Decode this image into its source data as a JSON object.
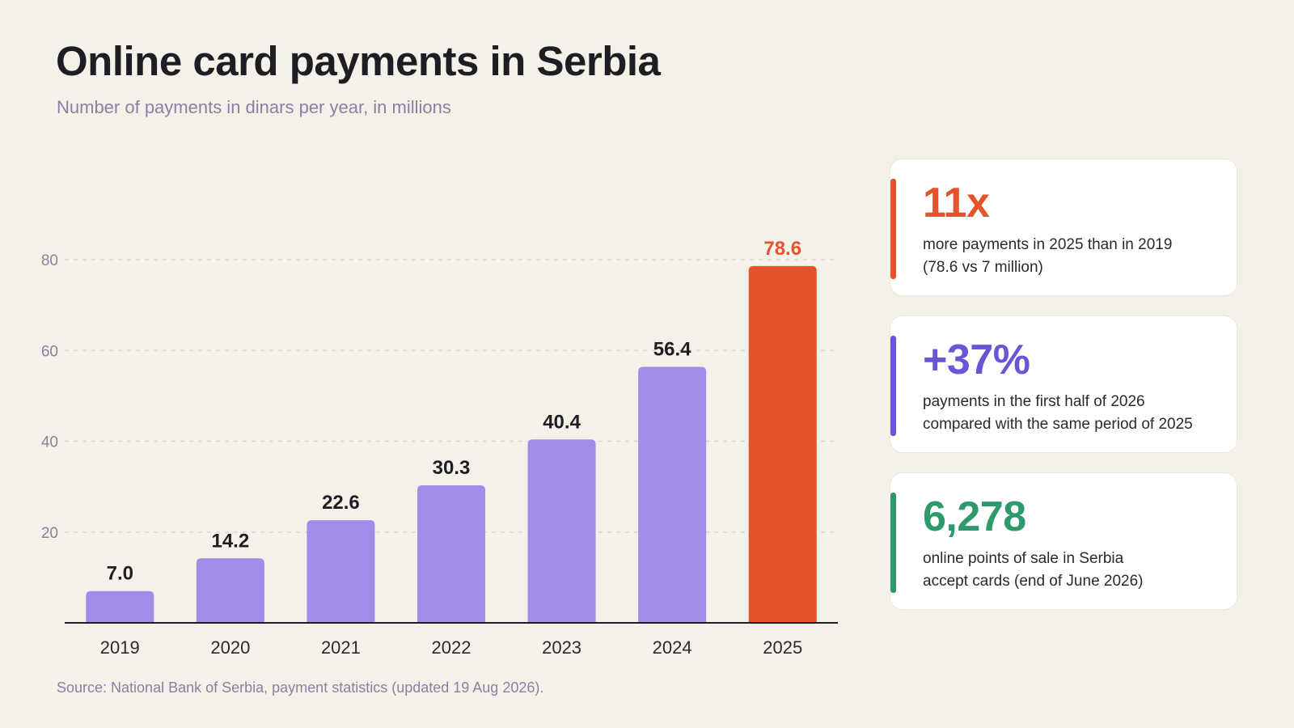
{
  "title": "Online card payments in Serbia",
  "subtitle": "Number of payments in dinars per year, in millions",
  "source": "Source: National Bank of Serbia, payment statistics (updated 19 Aug 2026).",
  "colors": {
    "bar": "#a18de8",
    "highlight": "#e5532d",
    "axis": "#1f1d24",
    "grid": "#ddd6cc",
    "tick": "#8c7fa4",
    "card_red": "#e5532d",
    "card_purple": "#6b55d6",
    "card_green": "#2e9a6b"
  },
  "chart_data": {
    "type": "bar",
    "categories": [
      "2019",
      "2020",
      "2021",
      "2022",
      "2023",
      "2024",
      "2025"
    ],
    "values": [
      7.0,
      14.2,
      22.6,
      30.3,
      40.4,
      56.4,
      78.6
    ],
    "data_labels": [
      "7.0",
      "14.2",
      "22.6",
      "30.3",
      "40.4",
      "56.4",
      "78.6"
    ],
    "highlight_category": "2025",
    "title": "Online card payments in Serbia",
    "subtitle": "Number of payments in dinars per year, in millions",
    "xlabel": "",
    "ylabel": "",
    "ylim": [
      0,
      80
    ],
    "yticks": [
      20,
      40,
      60,
      80
    ],
    "grid": true
  },
  "cards": [
    {
      "value": "11x",
      "line1": "more payments in 2025 than in 2019",
      "line2": "(78.6 vs 7 million)",
      "color": "#e5532d"
    },
    {
      "value": "+37%",
      "line1": "payments in the first half of 2026",
      "line2": "compared with the same period of 2025",
      "color": "#6b55d6"
    },
    {
      "value": "6,278",
      "line1": "online points of sale in Serbia",
      "line2": "accept cards (end of June 2026)",
      "color": "#2e9a6b"
    }
  ]
}
